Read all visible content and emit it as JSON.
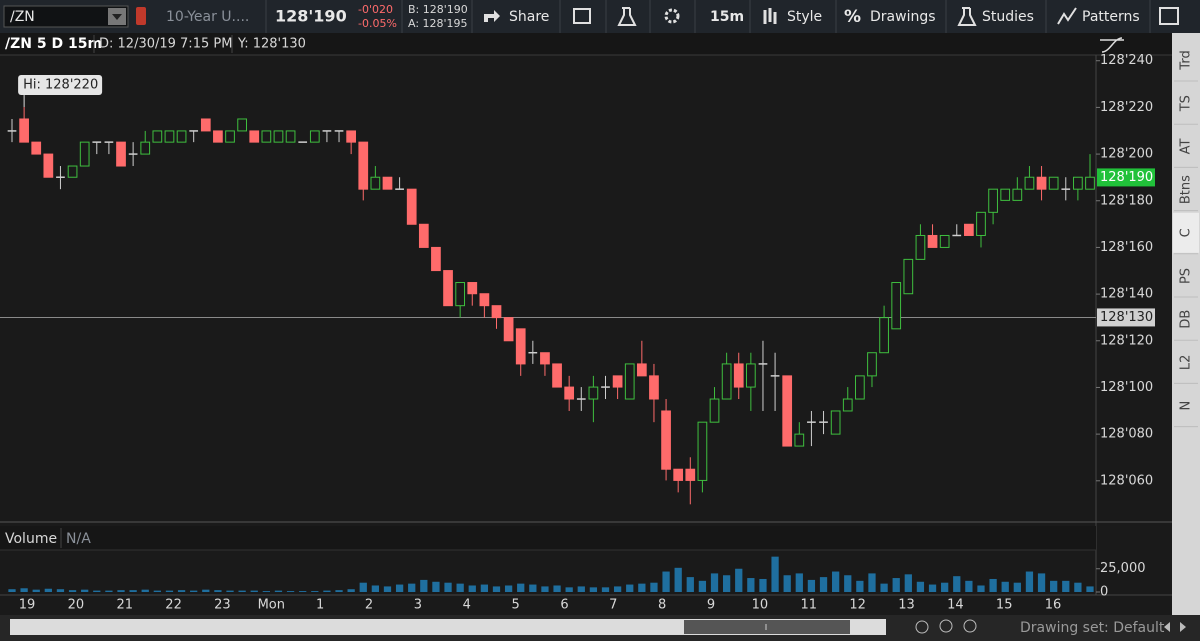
{
  "toolbar": {
    "symbol": "/ZN",
    "description": "10-Year U....",
    "last": "128'190",
    "change": "-0'020",
    "change_pct": "-0.05%",
    "bid": "B: 128'190",
    "ask": "A: 128'195",
    "percent_icon": "%",
    "buttons": [
      "Share",
      "15m",
      "Style",
      "Drawings",
      "Studies",
      "Patterns"
    ]
  },
  "chart_header": {
    "title": "/ZN 5 D 15m",
    "date": "D: 12/30/19 7:15 PM",
    "y": "Y: 128'130"
  },
  "sidebar": [
    "Trd",
    "TS",
    "AT",
    "Btns",
    "C",
    "PS",
    "DB",
    "L2",
    "N"
  ],
  "footer": {
    "drawing_set": "Drawing set: Default"
  },
  "chart_data": [
    {
      "type": "candlestick",
      "x_labels": [
        "19",
        "20",
        "21",
        "22",
        "23",
        "Mon",
        "1",
        "2",
        "3",
        "4",
        "5",
        "6",
        "7",
        "8",
        "9",
        "10",
        "11",
        "12",
        "13",
        "14",
        "15",
        "16"
      ],
      "open": [
        128.656,
        128.672,
        128.641,
        128.625,
        128.594,
        128.594,
        128.609,
        128.641,
        128.641,
        128.641,
        128.625,
        128.625,
        128.641,
        128.641,
        128.641,
        128.656,
        128.672,
        128.656,
        128.641,
        128.656,
        128.656,
        128.641,
        128.641,
        128.641,
        128.641,
        128.641,
        128.656,
        128.656,
        128.656,
        128.641,
        128.578,
        128.594,
        128.578,
        128.578,
        128.531,
        128.5,
        128.469,
        128.422,
        128.453,
        128.438,
        128.422,
        128.406,
        128.391,
        128.359,
        128.359,
        128.344,
        128.313,
        128.297,
        128.297,
        128.313,
        128.328,
        128.297,
        128.344,
        128.328,
        128.281,
        128.203,
        128.203,
        128.188,
        128.266,
        128.297,
        128.344,
        128.313,
        128.344,
        128.328,
        128.328,
        128.234,
        128.266,
        128.266,
        128.25,
        128.281,
        128.297,
        128.328,
        128.359,
        128.391,
        128.438,
        128.484,
        128.516,
        128.5,
        128.516,
        128.531,
        128.516,
        128.547,
        128.563,
        128.563,
        128.578,
        128.594,
        128.578,
        128.578,
        128.578,
        128.578
      ],
      "high": [
        128.672,
        128.688,
        128.641,
        128.625,
        128.609,
        128.609,
        128.641,
        128.641,
        128.641,
        128.641,
        128.641,
        128.656,
        128.656,
        128.656,
        128.656,
        128.656,
        128.672,
        128.656,
        128.656,
        128.672,
        128.656,
        128.656,
        128.656,
        128.656,
        128.641,
        128.656,
        128.656,
        128.656,
        128.656,
        128.641,
        128.609,
        128.594,
        128.594,
        128.578,
        128.531,
        128.5,
        128.469,
        128.453,
        128.453,
        128.438,
        128.422,
        128.406,
        128.391,
        128.375,
        128.359,
        128.344,
        128.328,
        128.313,
        128.328,
        128.328,
        128.328,
        128.344,
        128.375,
        128.344,
        128.297,
        128.203,
        128.219,
        128.266,
        128.313,
        128.359,
        128.359,
        128.359,
        128.375,
        128.359,
        128.328,
        128.266,
        128.281,
        128.281,
        128.281,
        128.313,
        128.328,
        128.359,
        128.422,
        128.453,
        128.484,
        128.531,
        128.531,
        128.516,
        128.531,
        128.531,
        128.547,
        128.578,
        128.578,
        128.594,
        128.609,
        128.609,
        128.594,
        128.594,
        128.594,
        128.625
      ],
      "low": [
        128.641,
        128.641,
        128.625,
        128.594,
        128.578,
        128.594,
        128.609,
        128.625,
        128.625,
        128.609,
        128.609,
        128.625,
        128.641,
        128.641,
        128.641,
        128.641,
        128.656,
        128.641,
        128.641,
        128.656,
        128.641,
        128.641,
        128.641,
        128.641,
        128.641,
        128.641,
        128.641,
        128.641,
        128.625,
        128.563,
        128.578,
        128.578,
        128.578,
        128.531,
        128.5,
        128.469,
        128.422,
        128.406,
        128.422,
        128.406,
        128.391,
        128.375,
        128.328,
        128.344,
        128.328,
        128.313,
        128.281,
        128.281,
        128.266,
        128.297,
        128.297,
        128.297,
        128.328,
        128.266,
        128.188,
        128.172,
        128.156,
        128.172,
        128.266,
        128.297,
        128.297,
        128.281,
        128.281,
        128.281,
        128.234,
        128.234,
        128.234,
        128.25,
        128.25,
        128.281,
        128.297,
        128.313,
        128.359,
        128.391,
        128.438,
        128.484,
        128.5,
        128.5,
        128.516,
        128.516,
        128.5,
        128.531,
        128.563,
        128.563,
        128.578,
        128.563,
        128.578,
        128.563,
        128.563,
        128.578
      ],
      "close": [
        128.656,
        128.641,
        128.625,
        128.594,
        128.594,
        128.609,
        128.641,
        128.641,
        128.641,
        128.609,
        128.625,
        128.641,
        128.656,
        128.656,
        128.656,
        128.656,
        128.656,
        128.641,
        128.656,
        128.672,
        128.641,
        128.656,
        128.656,
        128.656,
        128.641,
        128.656,
        128.656,
        128.656,
        128.641,
        128.578,
        128.594,
        128.578,
        128.578,
        128.531,
        128.5,
        128.469,
        128.422,
        128.453,
        128.438,
        128.422,
        128.406,
        128.375,
        128.344,
        128.359,
        128.344,
        128.313,
        128.297,
        128.297,
        128.313,
        128.313,
        128.313,
        128.344,
        128.328,
        128.297,
        128.203,
        128.188,
        128.188,
        128.266,
        128.297,
        128.344,
        128.313,
        128.344,
        128.344,
        128.328,
        128.234,
        128.25,
        128.266,
        128.266,
        128.281,
        128.297,
        128.328,
        128.359,
        128.406,
        128.453,
        128.484,
        128.516,
        128.5,
        128.516,
        128.516,
        128.516,
        128.547,
        128.578,
        128.578,
        128.578,
        128.594,
        128.578,
        128.594,
        128.578,
        128.594,
        128.594
      ],
      "ylim": [
        128.135,
        128.755
      ],
      "yticks": [
        {
          "value": 128.75,
          "label": "128'240"
        },
        {
          "value": 128.6875,
          "label": "128'220"
        },
        {
          "value": 128.625,
          "label": "128'200"
        },
        {
          "value": 128.5625,
          "label": "128'180"
        },
        {
          "value": 128.5,
          "label": "128'160"
        },
        {
          "value": 128.4375,
          "label": "128'140"
        },
        {
          "value": 128.375,
          "label": "128'120"
        },
        {
          "value": 128.3125,
          "label": "128'100"
        },
        {
          "value": 128.25,
          "label": "128'080"
        },
        {
          "value": 128.1875,
          "label": "128'060"
        }
      ],
      "high_label": "Hi: 128'220",
      "last_price": {
        "value": 128.59375,
        "label": "128'190"
      },
      "cursor": {
        "value": 128.40625,
        "label": "128'130"
      },
      "up_color": "#3fbf3f",
      "down_color": "#ff6b6b",
      "flat_color": "#cfcfcf",
      "last_color": "#21c13a"
    },
    {
      "type": "bar",
      "title": "Volume",
      "subtitle": "N/A",
      "values": [
        3000,
        4000,
        2500,
        3500,
        3000,
        2000,
        2500,
        1500,
        1500,
        2000,
        2000,
        2500,
        1500,
        1500,
        2000,
        1500,
        2500,
        2000,
        1500,
        1500,
        1500,
        1000,
        1500,
        1000,
        1000,
        1000,
        1500,
        2000,
        3000,
        10000,
        7000,
        6000,
        8000,
        9000,
        13000,
        11000,
        10000,
        9000,
        7000,
        8000,
        6000,
        7000,
        9000,
        8000,
        6000,
        7000,
        5000,
        6000,
        5000,
        5000,
        6000,
        8000,
        9000,
        10000,
        22000,
        26000,
        16000,
        12000,
        20000,
        18000,
        25000,
        15000,
        14000,
        38000,
        18000,
        20000,
        13000,
        16000,
        22000,
        18000,
        12000,
        20000,
        9000,
        15000,
        19000,
        11000,
        8000,
        10000,
        17000,
        12000,
        7000,
        14000,
        11000,
        10000,
        22000,
        20000,
        12000,
        12000,
        10000,
        6000
      ],
      "color": "#1f6f9f",
      "ylim": [
        0,
        43000
      ],
      "yticks": [
        {
          "value": 25000,
          "label": "25,000"
        },
        0
      ]
    }
  ]
}
